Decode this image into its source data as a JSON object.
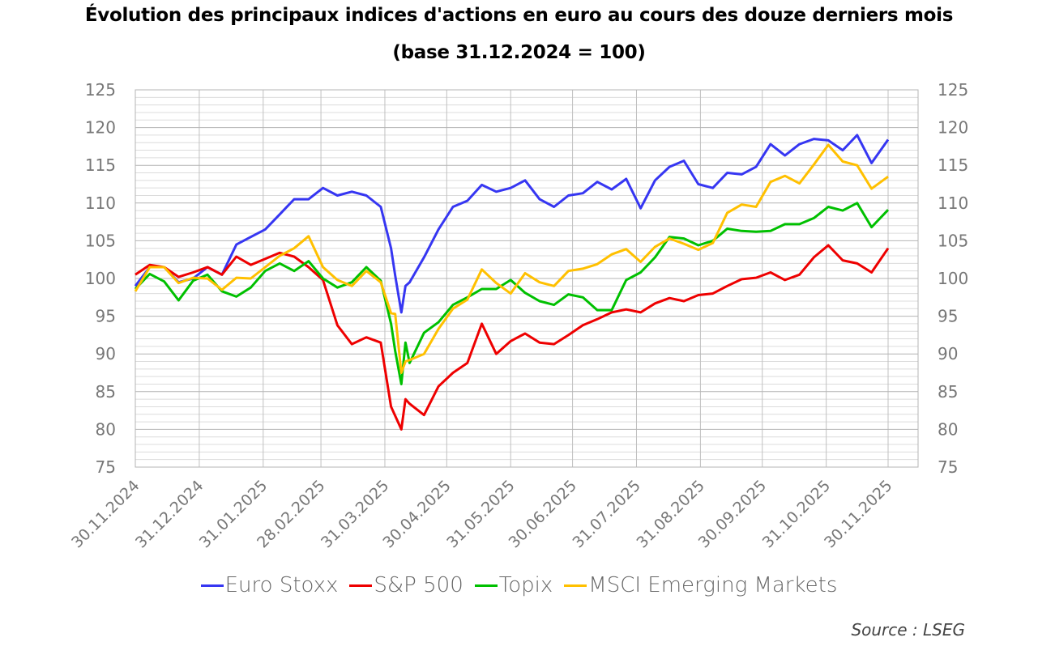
{
  "chart_data": {
    "type": "line",
    "title": "Évolution des principaux indices d'actions en euro au cours des douze derniers mois",
    "subtitle": "(base 31.12.2024 = 100)",
    "source": "Source : LSEG",
    "ylim": [
      75,
      125
    ],
    "y_ticks": [
      75,
      80,
      85,
      90,
      95,
      100,
      105,
      110,
      115,
      120,
      125
    ],
    "y_axis_both_sides": true,
    "grid": true,
    "legend_placement": "bottom",
    "x_tick_labels": [
      "30.11.2024",
      "31.12.2024",
      "31.01.2025",
      "28.02.2025",
      "31.03.2025",
      "30.04.2025",
      "31.05.2025",
      "30.06.2025",
      "31.07.2025",
      "31.08.2025",
      "30.09.2025",
      "31.10.2025",
      "30.11.2025"
    ],
    "x": [
      "2024-11-30",
      "2024-12-07",
      "2024-12-14",
      "2024-12-21",
      "2024-12-28",
      "2025-01-04",
      "2025-01-11",
      "2025-01-18",
      "2025-01-25",
      "2025-02-01",
      "2025-02-08",
      "2025-02-15",
      "2025-02-22",
      "2025-03-01",
      "2025-03-08",
      "2025-03-15",
      "2025-03-22",
      "2025-03-29",
      "2025-04-03",
      "2025-04-05",
      "2025-04-08",
      "2025-04-10",
      "2025-04-12",
      "2025-04-19",
      "2025-04-26",
      "2025-05-03",
      "2025-05-10",
      "2025-05-17",
      "2025-05-24",
      "2025-05-31",
      "2025-06-07",
      "2025-06-14",
      "2025-06-21",
      "2025-06-28",
      "2025-07-05",
      "2025-07-12",
      "2025-07-19",
      "2025-07-26",
      "2025-08-02",
      "2025-08-09",
      "2025-08-16",
      "2025-08-23",
      "2025-08-30",
      "2025-09-06",
      "2025-09-13",
      "2025-09-20",
      "2025-09-27",
      "2025-10-04",
      "2025-10-11",
      "2025-10-18",
      "2025-10-25",
      "2025-11-01",
      "2025-11-08",
      "2025-11-15",
      "2025-11-22",
      "2025-11-30"
    ],
    "series": [
      {
        "name": "Euro Stoxx",
        "color": "#3636f2",
        "values": [
          99,
          101.5,
          101.5,
          99.5,
          100,
          101.5,
          100.5,
          104.5,
          105.5,
          106.5,
          108.5,
          110.5,
          110.5,
          112,
          111,
          111.5,
          111,
          109.5,
          104,
          100.4,
          95.5,
          99,
          99.5,
          102.8,
          106.5,
          109.5,
          110.3,
          112.4,
          111.5,
          112,
          113,
          110.5,
          109.5,
          111,
          111.3,
          112.8,
          111.8,
          113.2,
          109.3,
          113,
          114.8,
          115.6,
          112.5,
          112,
          114,
          113.8,
          114.8,
          117.8,
          116.3,
          117.8,
          118.5,
          118.3,
          117,
          119,
          115.3,
          118.4
        ]
      },
      {
        "name": "S&P 500",
        "color": "#ee0000",
        "values": [
          100.5,
          101.8,
          101.5,
          100.2,
          100.8,
          101.5,
          100.5,
          102.9,
          101.8,
          102.6,
          103.4,
          102.9,
          101.5,
          99.8,
          93.8,
          91.3,
          92.2,
          91.5,
          83,
          81.8,
          80,
          84,
          83.4,
          81.9,
          85.7,
          87.5,
          88.8,
          94,
          90,
          91.7,
          92.7,
          91.5,
          91.3,
          92.5,
          93.8,
          94.6,
          95.5,
          95.9,
          95.5,
          96.7,
          97.4,
          97,
          97.8,
          98,
          99,
          99.9,
          100.1,
          100.8,
          99.8,
          100.5,
          102.8,
          104.4,
          102.4,
          102,
          100.8,
          104
        ]
      },
      {
        "name": "Topix",
        "color": "#00c000",
        "values": [
          98.6,
          100.6,
          99.6,
          97.1,
          99.7,
          100.5,
          98.3,
          97.6,
          98.8,
          101,
          102,
          101,
          102.3,
          100,
          98.8,
          99.5,
          101.5,
          99.7,
          94,
          90.4,
          86,
          91.5,
          88.8,
          92.8,
          94.2,
          96.5,
          97.5,
          98.6,
          98.6,
          99.8,
          98.1,
          97,
          96.5,
          97.9,
          97.5,
          95.8,
          95.8,
          99.8,
          100.8,
          102.8,
          105.5,
          105.3,
          104.4,
          105,
          106.6,
          106.3,
          106.2,
          106.3,
          107.2,
          107.2,
          108,
          109.5,
          109,
          110,
          106.8,
          109.1
        ]
      },
      {
        "name": "MSCI Emerging Markets",
        "color": "#ffc000",
        "values": [
          98.3,
          101.5,
          101.5,
          99.4,
          100.1,
          100,
          98.5,
          100.1,
          100,
          101.5,
          103,
          104,
          105.6,
          101.5,
          99.8,
          99,
          101,
          99.5,
          95.4,
          95.3,
          87.5,
          89,
          89.2,
          90,
          93.3,
          96,
          97.2,
          101.2,
          99.4,
          98,
          100.7,
          99.5,
          99,
          101,
          101.3,
          101.9,
          103.2,
          103.9,
          102.2,
          104.2,
          105.3,
          104.6,
          103.8,
          104.7,
          108.7,
          109.8,
          109.5,
          112.8,
          113.6,
          112.6,
          115.1,
          117.7,
          115.5,
          115,
          111.9,
          113.5
        ]
      }
    ]
  }
}
